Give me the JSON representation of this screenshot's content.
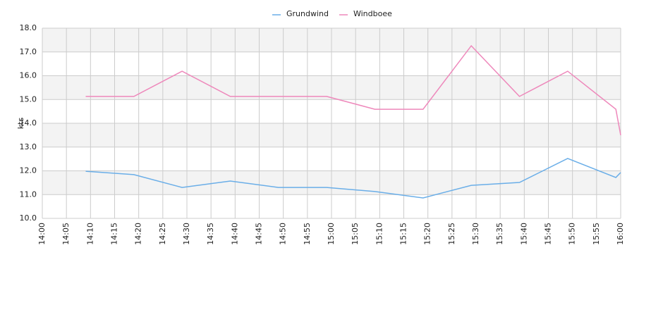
{
  "chart_data": {
    "type": "line",
    "y_label": "kts",
    "x": [
      "14:09",
      "14:19",
      "14:29",
      "14:39",
      "14:49",
      "14:59",
      "15:09",
      "15:19",
      "15:29",
      "15:39",
      "15:49",
      "15:59",
      "16:00"
    ],
    "series": [
      {
        "name": "Grundwind",
        "color": "#6aaee8",
        "values": [
          11.98,
          11.84,
          11.3,
          11.57,
          11.3,
          11.3,
          11.13,
          10.86,
          11.39,
          11.51,
          12.52,
          11.72,
          11.93
        ]
      },
      {
        "name": "Windboee",
        "color": "#ee88bb",
        "values": [
          15.13,
          15.13,
          16.19,
          15.13,
          15.13,
          15.13,
          14.59,
          14.59,
          17.26,
          15.13,
          16.19,
          14.59,
          13.5
        ]
      }
    ],
    "xlim": [
      "14:00",
      "16:00"
    ],
    "xticks": [
      "14:00",
      "14:05",
      "14:10",
      "14:15",
      "14:20",
      "14:25",
      "14:30",
      "14:35",
      "14:40",
      "14:45",
      "14:50",
      "14:55",
      "15:00",
      "15:05",
      "15:10",
      "15:15",
      "15:20",
      "15:25",
      "15:30",
      "15:35",
      "15:40",
      "15:45",
      "15:50",
      "15:55",
      "16:00"
    ],
    "ylim": [
      10,
      18
    ],
    "yticks": [
      {
        "value": 10,
        "label": "10.0"
      },
      {
        "value": 11,
        "label": "11.0"
      },
      {
        "value": 12,
        "label": "12.0"
      },
      {
        "value": 13,
        "label": "13.0"
      },
      {
        "value": 14,
        "label": "14.0"
      },
      {
        "value": 15,
        "label": "15.0"
      },
      {
        "value": 16,
        "label": "16.0"
      },
      {
        "value": 17,
        "label": "17.0"
      },
      {
        "value": 18,
        "label": "18.0"
      }
    ],
    "grid": true,
    "band_color": "#f3f3f3",
    "legend": "top"
  }
}
